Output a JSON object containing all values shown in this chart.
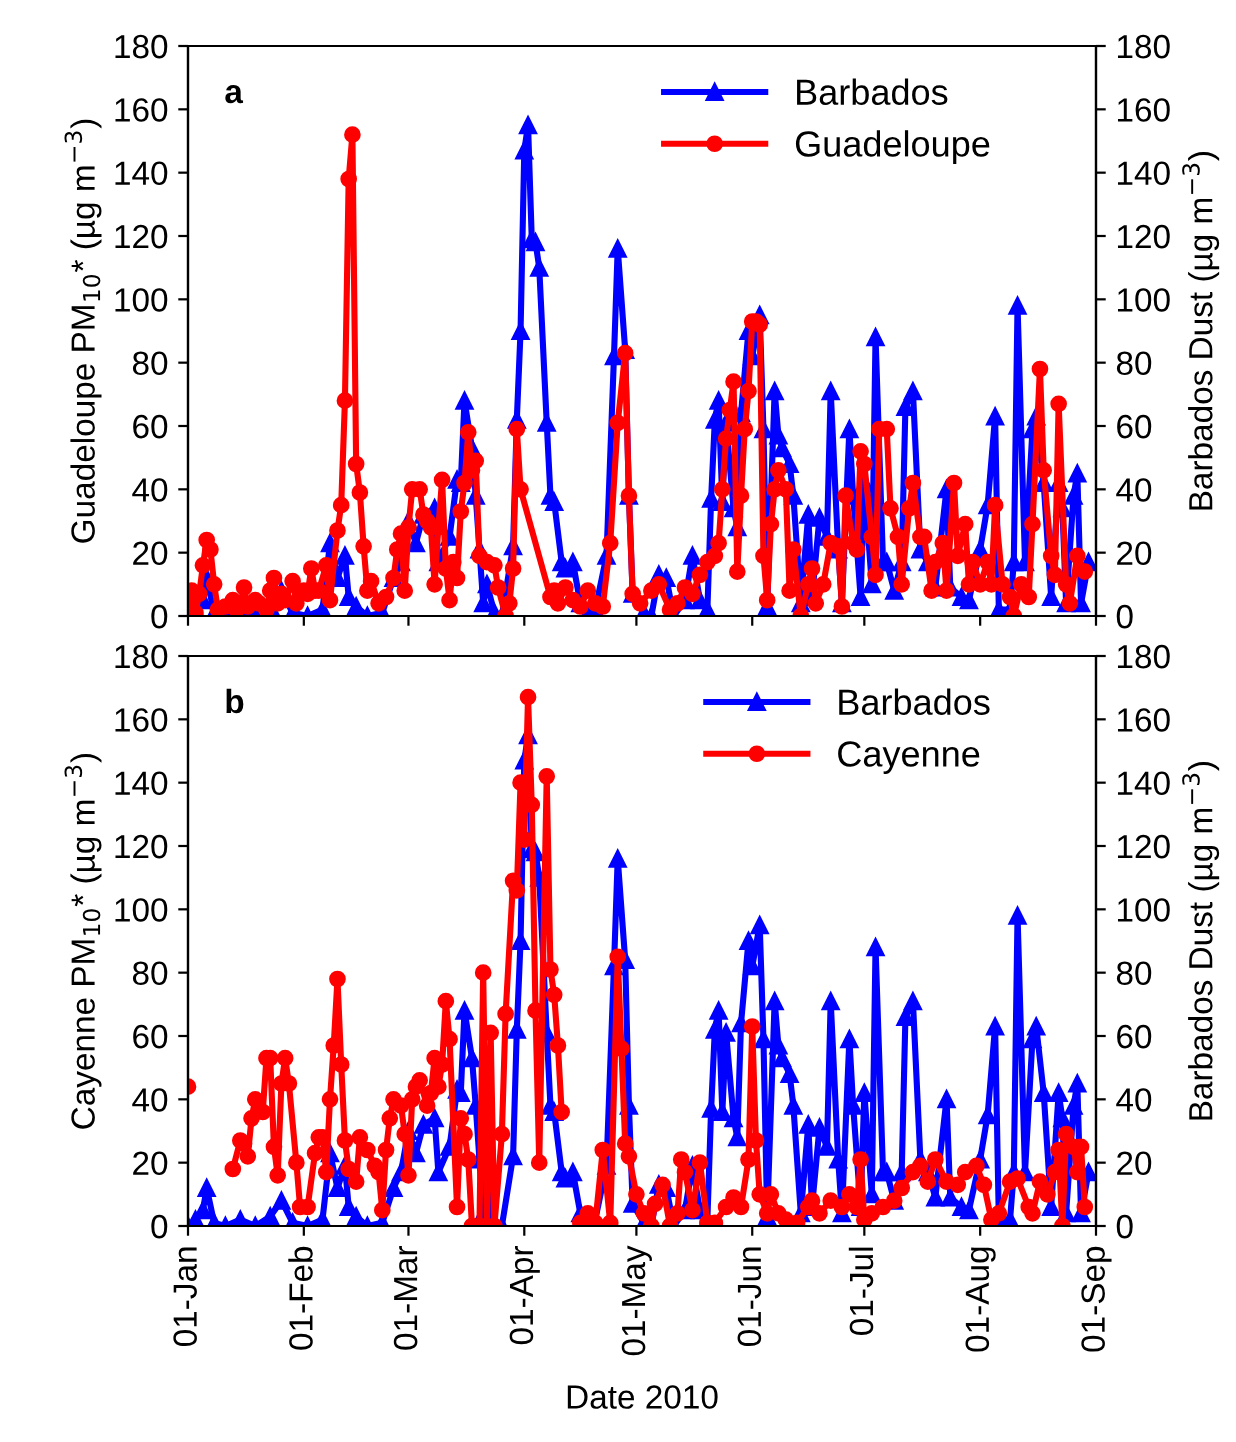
{
  "chart_data": [
    {
      "type": "line",
      "annotations": [
        "a"
      ],
      "ylabel": "Guadeloupe PM$_{10}$* (µg m$^{−3}$)",
      "y2label": "Barbados Dust (µg m$^{−3}$)",
      "xlim": [
        "2010-01-01",
        "2010-09-01"
      ],
      "xticks": [
        {
          "value": "2010-01-01",
          "label": null
        },
        {
          "value": "2010-02-01",
          "label": null
        },
        {
          "value": "2010-03-01",
          "label": null
        },
        {
          "value": "2010-04-01",
          "label": null
        },
        {
          "value": "2010-05-01",
          "label": null
        },
        {
          "value": "2010-06-01",
          "label": null
        },
        {
          "value": "2010-07-01",
          "label": null
        },
        {
          "value": "2010-08-01",
          "label": null
        },
        {
          "value": "2010-09-01",
          "label": null
        }
      ],
      "ylim": [
        0,
        180
      ],
      "yticks": [
        0,
        20,
        40,
        60,
        80,
        100,
        120,
        140,
        160,
        180
      ],
      "y2lim": [
        0,
        180
      ],
      "y2ticks": [
        0,
        20,
        40,
        60,
        80,
        100,
        120,
        140,
        160,
        180
      ],
      "tick_labels": "y",
      "legend": "top right",
      "grid": false,
      "series": [
        {
          "name": "Barbados",
          "color": "#0000ff",
          "axis": "y2",
          "marker": "triangle",
          "x": [
            "2010-01-01",
            "2010-01-03",
            "2010-01-05",
            "2010-01-06",
            "2010-01-08",
            "2010-01-11",
            "2010-01-15",
            "2010-01-19",
            "2010-01-23",
            "2010-01-26",
            "2010-01-29",
            "2010-02-02",
            "2010-02-06",
            "2010-02-08",
            "2010-02-10",
            "2010-02-12",
            "2010-02-13",
            "2010-02-15",
            "2010-02-18",
            "2010-02-22",
            "2010-02-25",
            "2010-02-27",
            "2010-03-01",
            "2010-03-03",
            "2010-03-05",
            "2010-03-08",
            "2010-03-09",
            "2010-03-12",
            "2010-03-14",
            "2010-03-15",
            "2010-03-16",
            "2010-03-18",
            "2010-03-19",
            "2010-03-20",
            "2010-03-21",
            "2010-03-22",
            "2010-03-24",
            "2010-03-26",
            "2010-03-29",
            "2010-03-30",
            "2010-03-31",
            "2010-04-01",
            "2010-04-02",
            "2010-04-03",
            "2010-04-04",
            "2010-04-05",
            "2010-04-07",
            "2010-04-08",
            "2010-04-09",
            "2010-04-11",
            "2010-04-12",
            "2010-04-14",
            "2010-04-16",
            "2010-04-18",
            "2010-04-20",
            "2010-04-23",
            "2010-04-25",
            "2010-04-26",
            "2010-04-28",
            "2010-04-29",
            "2010-04-30",
            "2010-05-03",
            "2010-05-05",
            "2010-05-07",
            "2010-05-09",
            "2010-05-11",
            "2010-05-14",
            "2010-05-16",
            "2010-05-18",
            "2010-05-20",
            "2010-05-21",
            "2010-05-22",
            "2010-05-23",
            "2010-05-24",
            "2010-05-25",
            "2010-05-27",
            "2010-05-28",
            "2010-05-29",
            "2010-05-31",
            "2010-06-01",
            "2010-06-03",
            "2010-06-04",
            "2010-06-05",
            "2010-06-07",
            "2010-06-08",
            "2010-06-09",
            "2010-06-11",
            "2010-06-12",
            "2010-06-14",
            "2010-06-16",
            "2010-06-17",
            "2010-06-19",
            "2010-06-21",
            "2010-06-22",
            "2010-06-24",
            "2010-06-25",
            "2010-06-27",
            "2010-06-28",
            "2010-06-30",
            "2010-07-01",
            "2010-07-03",
            "2010-07-04",
            "2010-07-06",
            "2010-07-07",
            "2010-07-09",
            "2010-07-11",
            "2010-07-12",
            "2010-07-14",
            "2010-07-16",
            "2010-07-18",
            "2010-07-20",
            "2010-07-23",
            "2010-07-24",
            "2010-07-27",
            "2010-07-29",
            "2010-08-01",
            "2010-08-03",
            "2010-08-05",
            "2010-08-06",
            "2010-08-09",
            "2010-08-10",
            "2010-08-11",
            "2010-08-13",
            "2010-08-15",
            "2010-08-16",
            "2010-08-18",
            "2010-08-20",
            "2010-08-22",
            "2010-08-23",
            "2010-08-24",
            "2010-08-26",
            "2010-08-27",
            "2010-08-28",
            "2010-08-30"
          ],
          "values": [
            0,
            2,
            5,
            12,
            1,
            0,
            2,
            0,
            3,
            8,
            1,
            0,
            2,
            23,
            12,
            19,
            6,
            3,
            0,
            1,
            12,
            17,
            30,
            23,
            32,
            34,
            17,
            25,
            43,
            42,
            68,
            53,
            38,
            21,
            4,
            10,
            1,
            0,
            22,
            62,
            90,
            147,
            155,
            119,
            118,
            110,
            61,
            38,
            36,
            17,
            15,
            17,
            4,
            1,
            2,
            19,
            82,
            116,
            84,
            38,
            7,
            1,
            0,
            13,
            12,
            0,
            5,
            19,
            5,
            2,
            37,
            62,
            68,
            36,
            61,
            34,
            28,
            64,
            90,
            82,
            95,
            59,
            3,
            71,
            57,
            53,
            48,
            38,
            4,
            32,
            6,
            31,
            25,
            71,
            21,
            4,
            59,
            38,
            6,
            42,
            10,
            88,
            17,
            17,
            8,
            17,
            66,
            71,
            21,
            17,
            9,
            40,
            9,
            6,
            5,
            21,
            35,
            63,
            2,
            2,
            17,
            98,
            17,
            59,
            63,
            42,
            6,
            42,
            34,
            4,
            38,
            45,
            4,
            17
          ]
        },
        {
          "name": "Guadeloupe",
          "color": "#ff0000",
          "marker": "circle",
          "x": [
            "2010-01-01",
            "2010-01-02",
            "2010-01-03",
            "2010-01-04",
            "2010-01-05",
            "2010-01-06",
            "2010-01-07",
            "2010-01-08",
            "2010-01-09",
            "2010-01-11",
            "2010-01-13",
            "2010-01-14",
            "2010-01-15",
            "2010-01-16",
            "2010-01-17",
            "2010-01-19",
            "2010-01-20",
            "2010-01-22",
            "2010-01-23",
            "2010-01-24",
            "2010-01-25",
            "2010-01-26",
            "2010-01-27",
            "2010-01-29",
            "2010-01-30",
            "2010-02-01",
            "2010-02-02",
            "2010-02-03",
            "2010-02-04",
            "2010-02-05",
            "2010-02-07",
            "2010-02-08",
            "2010-02-10",
            "2010-02-11",
            "2010-02-12",
            "2010-02-13",
            "2010-02-14",
            "2010-02-15",
            "2010-02-16",
            "2010-02-17",
            "2010-02-18",
            "2010-02-19",
            "2010-02-21",
            "2010-02-23",
            "2010-02-25",
            "2010-02-26",
            "2010-02-27",
            "2010-02-28",
            "2010-03-01",
            "2010-03-02",
            "2010-03-04",
            "2010-03-05",
            "2010-03-06",
            "2010-03-07",
            "2010-03-08",
            "2010-03-09",
            "2010-03-10",
            "2010-03-11",
            "2010-03-12",
            "2010-03-13",
            "2010-03-14",
            "2010-03-15",
            "2010-03-16",
            "2010-03-17",
            "2010-03-18",
            "2010-03-19",
            "2010-03-20",
            "2010-03-22",
            "2010-03-24",
            "2010-03-25",
            "2010-03-27",
            "2010-03-28",
            "2010-03-29",
            "2010-03-30",
            "2010-03-31",
            "2010-04-08",
            "2010-04-09",
            "2010-04-10",
            "2010-04-12",
            "2010-04-14",
            "2010-04-16",
            "2010-04-18",
            "2010-04-20",
            "2010-04-22",
            "2010-04-24",
            "2010-04-26",
            "2010-04-28",
            "2010-04-29",
            "2010-04-30",
            "2010-05-02",
            "2010-05-05",
            "2010-05-07",
            "2010-05-10",
            "2010-05-12",
            "2010-05-14",
            "2010-05-16",
            "2010-05-18",
            "2010-05-20",
            "2010-05-22",
            "2010-05-23",
            "2010-05-24",
            "2010-05-25",
            "2010-05-26",
            "2010-05-27",
            "2010-05-28",
            "2010-05-29",
            "2010-05-30",
            "2010-05-31",
            "2010-06-01",
            "2010-06-02",
            "2010-06-03",
            "2010-06-04",
            "2010-06-05",
            "2010-06-06",
            "2010-06-07",
            "2010-06-08",
            "2010-06-10",
            "2010-06-11",
            "2010-06-12",
            "2010-06-14",
            "2010-06-16",
            "2010-06-17",
            "2010-06-18",
            "2010-06-20",
            "2010-06-22",
            "2010-06-24",
            "2010-06-25",
            "2010-06-26",
            "2010-06-28",
            "2010-06-29",
            "2010-06-30",
            "2010-07-01",
            "2010-07-03",
            "2010-07-04",
            "2010-07-05",
            "2010-07-07",
            "2010-07-08",
            "2010-07-10",
            "2010-07-11",
            "2010-07-13",
            "2010-07-14",
            "2010-07-16",
            "2010-07-17",
            "2010-07-19",
            "2010-07-20",
            "2010-07-22",
            "2010-07-23",
            "2010-07-25",
            "2010-07-26",
            "2010-07-28",
            "2010-07-29",
            "2010-07-30",
            "2010-08-01",
            "2010-08-03",
            "2010-08-04",
            "2010-08-05",
            "2010-08-07",
            "2010-08-09",
            "2010-08-10",
            "2010-08-12",
            "2010-08-14",
            "2010-08-15",
            "2010-08-17",
            "2010-08-18",
            "2010-08-20",
            "2010-08-21",
            "2010-08-22",
            "2010-08-24",
            "2010-08-25",
            "2010-08-27",
            "2010-08-29"
          ],
          "values": [
            4,
            8,
            1,
            7,
            16,
            24,
            21,
            10,
            2,
            3,
            5,
            2,
            4,
            9,
            3,
            5,
            4,
            2,
            8,
            12,
            4,
            7,
            5,
            11,
            4,
            8,
            7,
            15,
            8,
            8,
            16,
            5,
            27,
            35,
            68,
            138,
            152,
            48,
            39,
            22,
            8,
            11,
            4,
            6,
            12,
            21,
            26,
            8,
            28,
            40,
            40,
            32,
            30,
            28,
            10,
            28,
            43,
            15,
            5,
            17,
            12,
            33,
            42,
            58,
            46,
            49,
            19,
            17,
            16,
            9,
            0,
            4,
            15,
            59,
            40,
            6,
            8,
            4,
            9,
            5,
            3,
            8,
            4,
            3,
            23,
            61,
            83,
            38,
            7,
            4,
            8,
            10,
            2,
            4,
            9,
            7,
            13,
            17,
            19,
            23,
            40,
            56,
            65,
            74,
            14,
            38,
            59,
            71,
            93,
            93,
            92,
            19,
            5,
            29,
            40,
            46,
            40,
            8,
            21,
            0,
            10,
            15,
            4,
            10,
            23,
            22,
            3,
            38,
            23,
            21,
            52,
            48,
            25,
            13,
            59,
            59,
            34,
            25,
            10,
            34,
            42,
            25,
            25,
            8,
            17,
            23,
            8,
            42,
            19,
            29,
            10,
            17,
            10,
            17,
            10,
            35,
            10,
            6,
            0,
            10,
            6,
            29,
            78,
            46,
            19,
            13,
            67,
            10,
            4,
            19,
            14
          ]
        }
      ]
    },
    {
      "type": "line",
      "annotations": [
        "b"
      ],
      "ylabel": "Cayenne PM$_{10}$* (µg m$^{−3}$)",
      "y2label": "Barbados Dust (µg m$^{−3}$)",
      "xlabel": "Date 2010",
      "xlim": [
        "2010-01-01",
        "2010-09-01"
      ],
      "xticks": [
        {
          "value": "2010-01-01",
          "label": "01-Jan"
        },
        {
          "value": "2010-02-01",
          "label": "01-Feb"
        },
        {
          "value": "2010-03-01",
          "label": "01-Mar"
        },
        {
          "value": "2010-04-01",
          "label": "01-Apr"
        },
        {
          "value": "2010-05-01",
          "label": "01-May"
        },
        {
          "value": "2010-06-01",
          "label": "01-Jun"
        },
        {
          "value": "2010-07-01",
          "label": "01-Jul"
        },
        {
          "value": "2010-08-01",
          "label": "01-Aug"
        },
        {
          "value": "2010-09-01",
          "label": "01-Sep"
        }
      ],
      "ylim": [
        0,
        180
      ],
      "yticks": [
        0,
        20,
        40,
        60,
        80,
        100,
        120,
        140,
        160,
        180
      ],
      "y2lim": [
        0,
        180
      ],
      "y2ticks": [
        0,
        20,
        40,
        60,
        80,
        100,
        120,
        140,
        160,
        180
      ],
      "legend": "top right",
      "grid": false,
      "series": [
        {
          "name": "Barbados",
          "color": "#0000ff",
          "axis": "y2",
          "marker": "triangle",
          "x": [
            "2010-01-01",
            "2010-01-03",
            "2010-01-05",
            "2010-01-06",
            "2010-01-08",
            "2010-01-11",
            "2010-01-15",
            "2010-01-19",
            "2010-01-23",
            "2010-01-26",
            "2010-01-29",
            "2010-02-02",
            "2010-02-06",
            "2010-02-08",
            "2010-02-10",
            "2010-02-12",
            "2010-02-13",
            "2010-02-15",
            "2010-02-18",
            "2010-02-22",
            "2010-02-25",
            "2010-02-27",
            "2010-03-01",
            "2010-03-03",
            "2010-03-05",
            "2010-03-08",
            "2010-03-09",
            "2010-03-12",
            "2010-03-14",
            "2010-03-15",
            "2010-03-16",
            "2010-03-18",
            "2010-03-19",
            "2010-03-20",
            "2010-03-21",
            "2010-03-22",
            "2010-03-24",
            "2010-03-26",
            "2010-03-29",
            "2010-03-30",
            "2010-03-31",
            "2010-04-01",
            "2010-04-02",
            "2010-04-03",
            "2010-04-04",
            "2010-04-05",
            "2010-04-07",
            "2010-04-08",
            "2010-04-09",
            "2010-04-11",
            "2010-04-12",
            "2010-04-14",
            "2010-04-16",
            "2010-04-18",
            "2010-04-20",
            "2010-04-23",
            "2010-04-25",
            "2010-04-26",
            "2010-04-28",
            "2010-04-29",
            "2010-04-30",
            "2010-05-03",
            "2010-05-05",
            "2010-05-07",
            "2010-05-09",
            "2010-05-11",
            "2010-05-14",
            "2010-05-16",
            "2010-05-18",
            "2010-05-20",
            "2010-05-21",
            "2010-05-22",
            "2010-05-23",
            "2010-05-24",
            "2010-05-25",
            "2010-05-27",
            "2010-05-28",
            "2010-05-29",
            "2010-05-31",
            "2010-06-01",
            "2010-06-03",
            "2010-06-04",
            "2010-06-05",
            "2010-06-07",
            "2010-06-08",
            "2010-06-09",
            "2010-06-11",
            "2010-06-12",
            "2010-06-14",
            "2010-06-16",
            "2010-06-17",
            "2010-06-19",
            "2010-06-21",
            "2010-06-22",
            "2010-06-24",
            "2010-06-25",
            "2010-06-27",
            "2010-06-28",
            "2010-06-30",
            "2010-07-01",
            "2010-07-03",
            "2010-07-04",
            "2010-07-06",
            "2010-07-07",
            "2010-07-09",
            "2010-07-11",
            "2010-07-12",
            "2010-07-14",
            "2010-07-16",
            "2010-07-18",
            "2010-07-20",
            "2010-07-23",
            "2010-07-24",
            "2010-07-27",
            "2010-07-29",
            "2010-08-01",
            "2010-08-03",
            "2010-08-05",
            "2010-08-06",
            "2010-08-09",
            "2010-08-10",
            "2010-08-11",
            "2010-08-13",
            "2010-08-15",
            "2010-08-16",
            "2010-08-18",
            "2010-08-20",
            "2010-08-22",
            "2010-08-23",
            "2010-08-24",
            "2010-08-26",
            "2010-08-27",
            "2010-08-28",
            "2010-08-30"
          ],
          "values": [
            0,
            2,
            5,
            12,
            1,
            0,
            2,
            0,
            3,
            8,
            1,
            0,
            2,
            23,
            12,
            19,
            6,
            3,
            0,
            1,
            12,
            17,
            30,
            23,
            32,
            34,
            17,
            25,
            43,
            42,
            68,
            53,
            38,
            21,
            4,
            10,
            1,
            0,
            22,
            62,
            90,
            147,
            155,
            119,
            118,
            110,
            61,
            38,
            36,
            17,
            15,
            17,
            4,
            1,
            2,
            19,
            82,
            116,
            84,
            38,
            7,
            1,
            0,
            13,
            12,
            0,
            5,
            19,
            5,
            2,
            37,
            62,
            68,
            36,
            61,
            34,
            28,
            64,
            90,
            82,
            95,
            59,
            3,
            71,
            57,
            53,
            48,
            38,
            4,
            32,
            6,
            31,
            25,
            71,
            21,
            4,
            59,
            38,
            6,
            42,
            10,
            88,
            17,
            17,
            8,
            17,
            66,
            71,
            21,
            17,
            9,
            40,
            9,
            6,
            5,
            21,
            35,
            63,
            2,
            2,
            17,
            98,
            17,
            59,
            63,
            42,
            6,
            42,
            34,
            4,
            38,
            45,
            4,
            17
          ]
        },
        {
          "name": "Cayenne",
          "color": "#ff0000",
          "marker": "circle",
          "x": [
            "2010-01-01",
            "2010-01-07",
            "2010-01-13",
            "2010-01-15",
            "2010-01-16",
            "2010-01-17",
            "2010-01-18",
            "2010-01-19",
            "2010-01-21",
            "2010-01-22",
            "2010-01-23",
            "2010-01-24",
            "2010-01-25",
            "2010-01-26",
            "2010-01-27",
            "2010-01-28",
            "2010-01-30",
            "2010-01-31",
            "2010-02-02",
            "2010-02-04",
            "2010-02-05",
            "2010-02-06",
            "2010-02-07",
            "2010-02-08",
            "2010-02-09",
            "2010-02-10",
            "2010-02-11",
            "2010-02-12",
            "2010-02-13",
            "2010-02-15",
            "2010-02-16",
            "2010-02-18",
            "2010-02-20",
            "2010-02-21",
            "2010-02-22",
            "2010-02-23",
            "2010-02-24",
            "2010-02-25",
            "2010-02-27",
            "2010-02-28",
            "2010-03-01",
            "2010-03-02",
            "2010-03-03",
            "2010-03-04",
            "2010-03-06",
            "2010-03-07",
            "2010-03-08",
            "2010-03-09",
            "2010-03-10",
            "2010-03-11",
            "2010-03-12",
            "2010-03-14",
            "2010-03-15",
            "2010-03-16",
            "2010-03-17",
            "2010-03-18",
            "2010-03-20",
            "2010-03-21",
            "2010-03-22",
            "2010-03-23",
            "2010-03-24",
            "2010-03-26",
            "2010-03-27",
            "2010-03-29",
            "2010-03-30",
            "2010-03-31",
            "2010-04-01",
            "2010-04-02",
            "2010-04-03",
            "2010-04-04",
            "2010-04-05",
            "2010-04-07",
            "2010-04-08",
            "2010-04-09",
            "2010-04-10",
            "2010-04-11",
            "2010-04-14",
            "2010-04-16",
            "2010-04-18",
            "2010-04-20",
            "2010-04-22",
            "2010-04-24",
            "2010-04-26",
            "2010-04-27",
            "2010-04-28",
            "2010-04-29",
            "2010-05-01",
            "2010-05-03",
            "2010-05-05",
            "2010-05-06",
            "2010-05-08",
            "2010-05-10",
            "2010-05-12",
            "2010-05-13",
            "2010-05-14",
            "2010-05-16",
            "2010-05-18",
            "2010-05-20",
            "2010-05-22",
            "2010-05-25",
            "2010-05-27",
            "2010-05-29",
            "2010-05-31",
            "2010-06-01",
            "2010-06-02",
            "2010-06-03",
            "2010-06-05",
            "2010-06-06",
            "2010-06-08",
            "2010-06-10",
            "2010-06-13",
            "2010-06-16",
            "2010-06-17",
            "2010-06-19",
            "2010-06-22",
            "2010-06-25",
            "2010-06-27",
            "2010-06-29",
            "2010-06-30",
            "2010-07-01",
            "2010-07-03",
            "2010-07-06",
            "2010-07-09",
            "2010-07-11",
            "2010-07-14",
            "2010-07-16",
            "2010-07-18",
            "2010-07-20",
            "2010-07-23",
            "2010-07-26",
            "2010-07-28",
            "2010-07-31",
            "2010-08-02",
            "2010-08-04",
            "2010-08-06",
            "2010-08-09",
            "2010-08-11",
            "2010-08-14",
            "2010-08-15",
            "2010-08-17",
            "2010-08-19",
            "2010-08-21",
            "2010-08-22",
            "2010-08-23",
            "2010-08-24",
            "2010-08-26",
            "2010-08-27",
            "2010-08-28",
            "2010-08-29"
          ],
          "values": [
            44,
            null,
            18,
            27,
            26,
            22,
            34,
            40,
            36,
            53,
            53,
            25,
            16,
            45,
            53,
            45,
            20,
            6,
            6,
            23,
            28,
            28,
            17,
            40,
            57,
            78,
            51,
            27,
            18,
            14,
            28,
            24,
            19,
            17,
            5,
            24,
            34,
            40,
            38,
            29,
            16,
            40,
            44,
            46,
            38,
            42,
            53,
            44,
            51,
            71,
            59,
            6,
            34,
            29,
            21,
            0,
            0,
            80,
            0,
            61,
            0,
            29,
            67,
            109,
            106,
            140,
            122,
            167,
            133,
            68,
            20,
            142,
            81,
            73,
            57,
            36,
            null,
            1,
            4,
            1,
            24,
            1,
            85,
            56,
            26,
            22,
            10,
            4,
            0,
            7,
            13,
            0,
            4,
            21,
            17,
            5,
            20,
            1,
            1,
            6,
            9,
            6,
            21,
            63,
            27,
            10,
            4,
            10,
            4,
            2,
            1,
            6,
            8,
            4,
            8,
            6,
            10,
            6,
            21,
            2,
            4,
            6,
            8,
            12,
            17,
            19,
            14,
            21,
            14,
            13,
            17,
            19,
            13,
            2,
            4,
            14,
            15,
            6,
            4,
            14,
            10,
            17,
            24,
            0,
            29,
            25,
            17,
            25,
            6
          ]
        }
      ]
    }
  ]
}
